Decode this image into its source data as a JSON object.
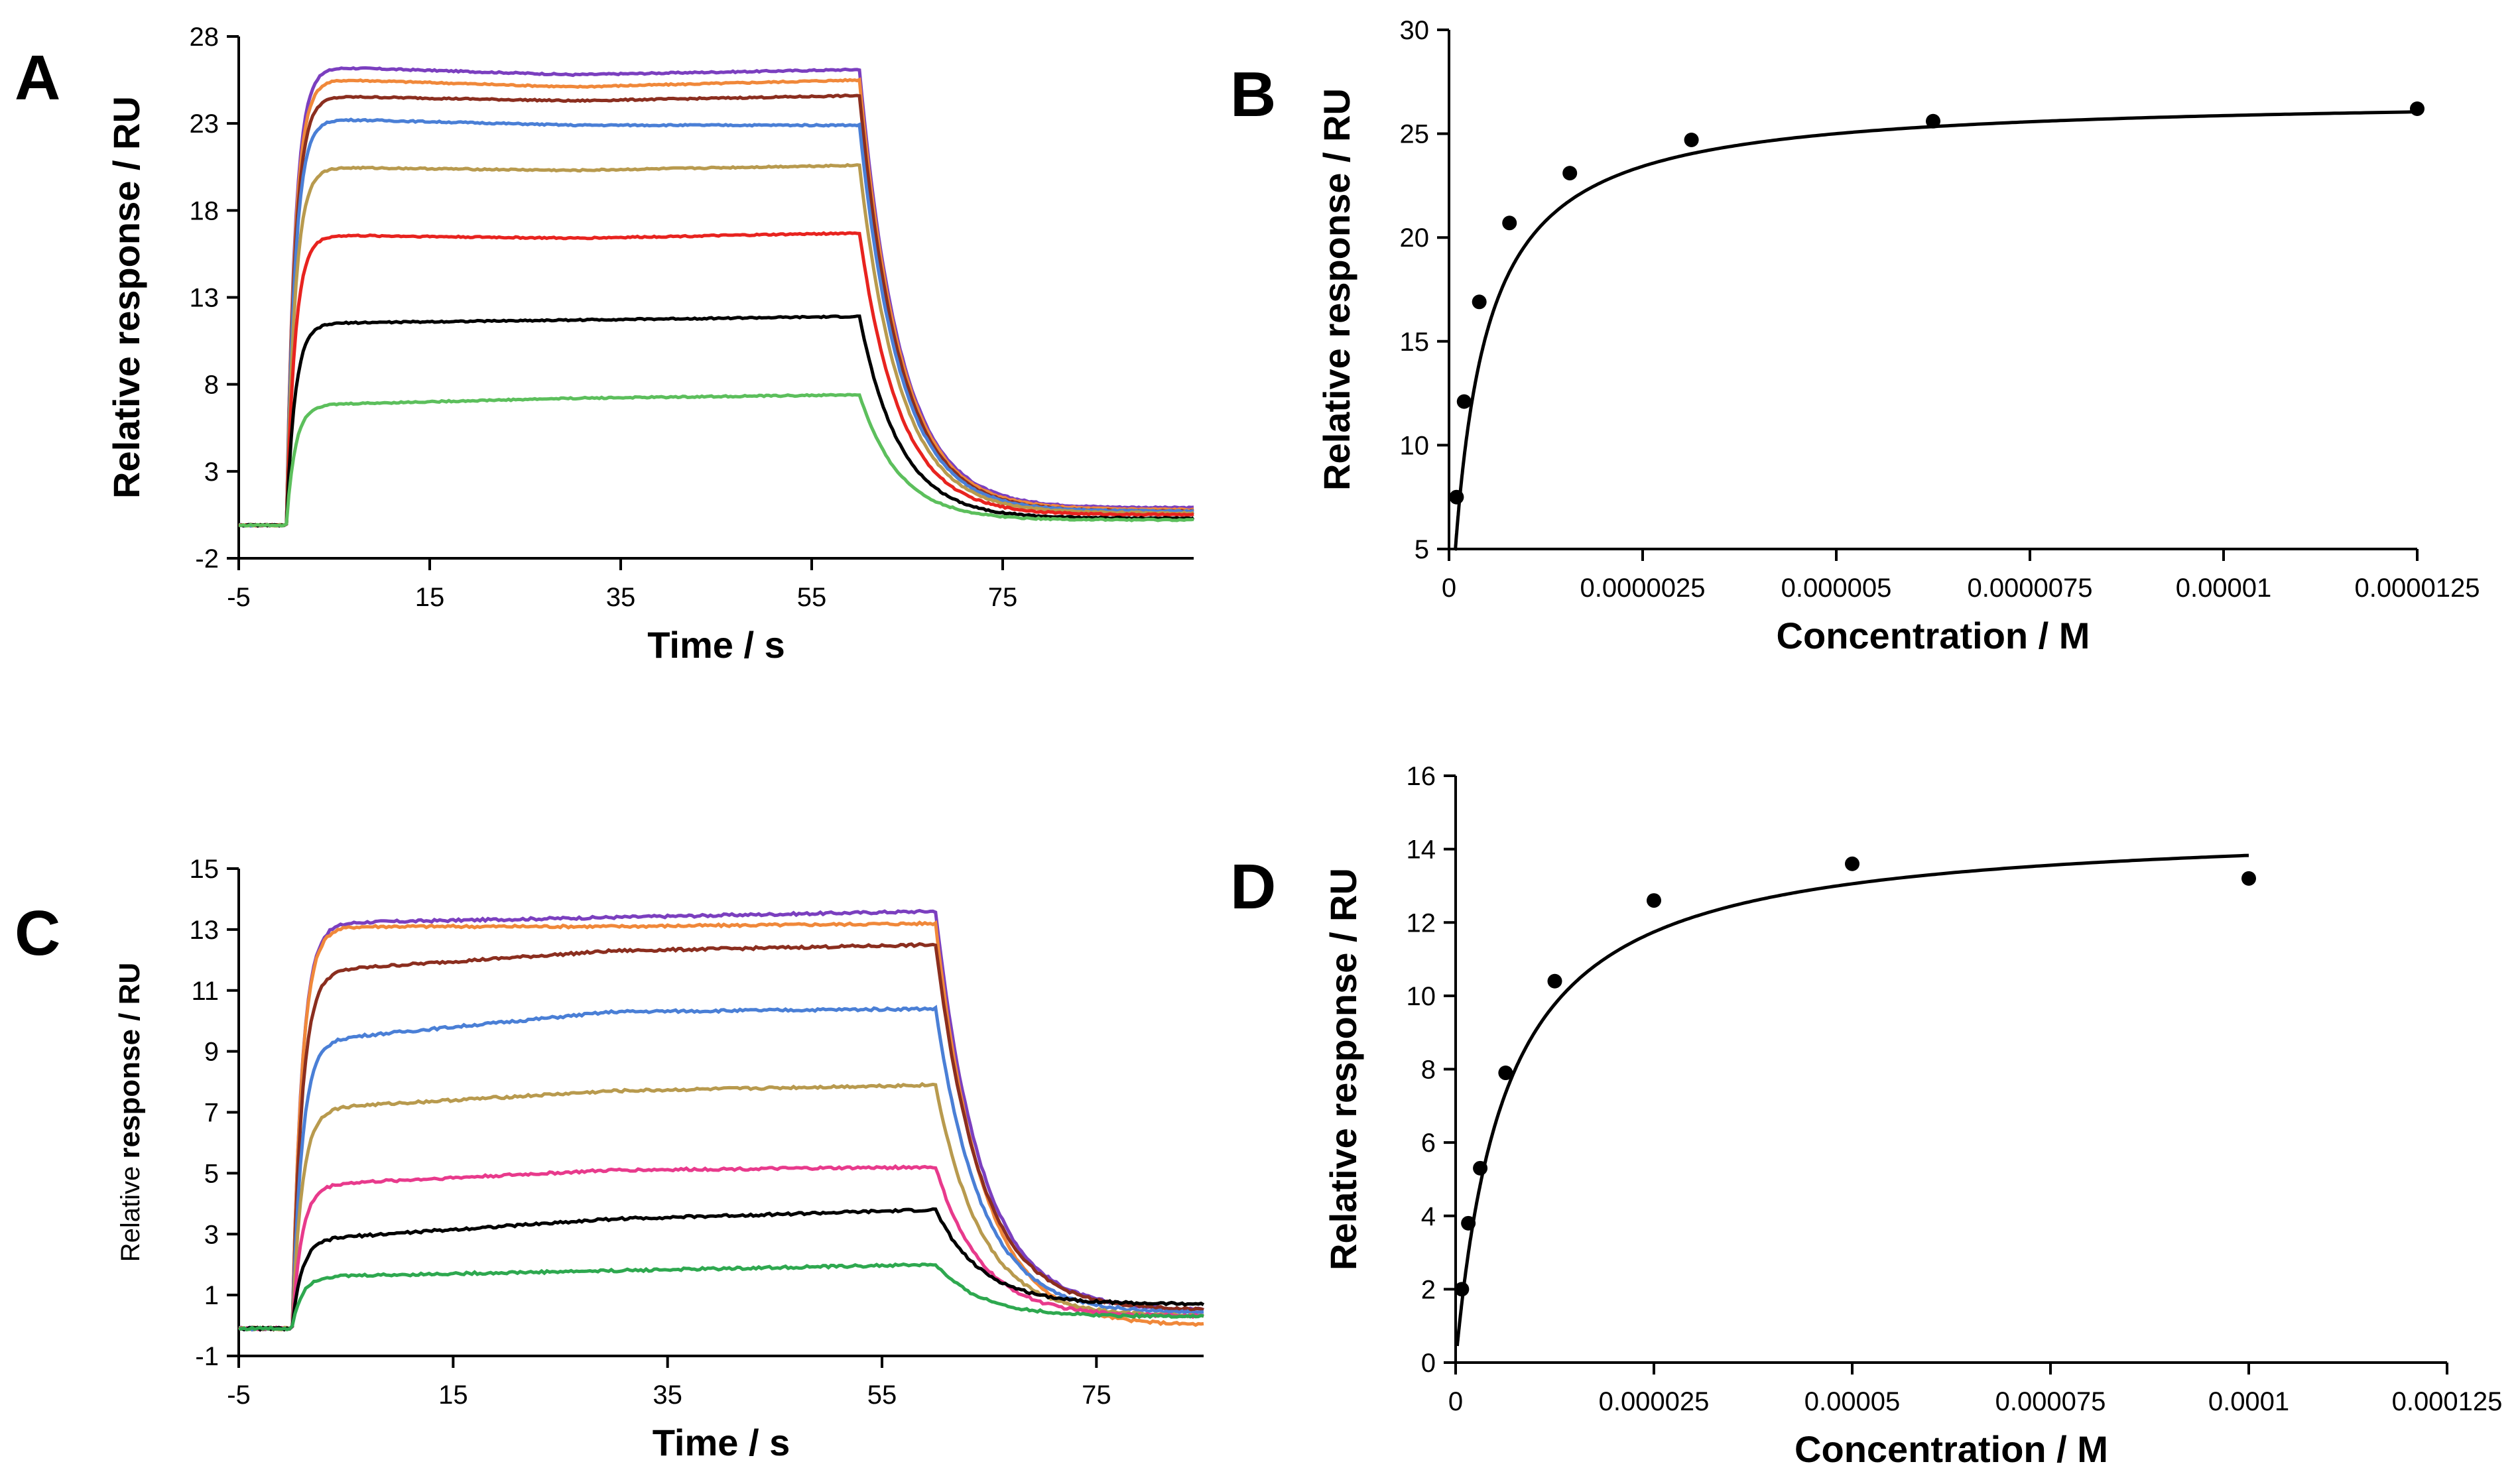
{
  "chart_data": [
    {
      "panel": "A",
      "type": "line",
      "xlabel": "Time / s",
      "ylabel": "Relative response / RU",
      "xlim": [
        -5,
        95
      ],
      "ylim": [
        -2,
        28
      ],
      "xticks": [
        -5,
        15,
        35,
        55,
        75
      ],
      "yticks": [
        -2,
        3,
        8,
        13,
        18,
        23,
        28
      ],
      "xtick_labels": [
        "-5",
        "15",
        "35",
        "55",
        "75"
      ],
      "ytick_labels": [
        "-2",
        "3",
        "8",
        "13",
        "18",
        "23",
        "28"
      ],
      "injection_start": 0,
      "injection_end": 60,
      "series": [
        {
          "color": "#7b3fbf",
          "plateau_start": 26.3,
          "plateau_mid": 25.8,
          "plateau_end": 26.1,
          "final": 0.9
        },
        {
          "color": "#f0883a",
          "plateau_start": 25.6,
          "plateau_mid": 25.1,
          "plateau_end": 25.5,
          "final": 0.8
        },
        {
          "color": "#8b2e1f",
          "plateau_start": 24.6,
          "plateau_mid": 24.3,
          "plateau_end": 24.6,
          "final": 0.7
        },
        {
          "color": "#4a7fd6",
          "plateau_start": 23.3,
          "plateau_mid": 22.9,
          "plateau_end": 22.9,
          "final": 0.7
        },
        {
          "color": "#b89a4e",
          "plateau_start": 20.5,
          "plateau_mid": 20.3,
          "plateau_end": 20.6,
          "final": 0.6
        },
        {
          "color": "#e8231f",
          "plateau_start": 16.6,
          "plateau_mid": 16.4,
          "plateau_end": 16.7,
          "final": 0.5
        },
        {
          "color": "#000000",
          "plateau_start": 11.5,
          "plateau_mid": 11.7,
          "plateau_end": 11.9,
          "final": 0.3
        },
        {
          "color": "#5cbf5c",
          "plateau_start": 6.8,
          "plateau_mid": 7.2,
          "plateau_end": 7.4,
          "final": 0.2
        }
      ]
    },
    {
      "panel": "B",
      "type": "scatter",
      "xlabel": "Concentration / M",
      "ylabel": "Relative response / RU",
      "xlim": [
        0,
        1.25e-05
      ],
      "ylim": [
        5,
        30
      ],
      "xticks": [
        0,
        2.5e-06,
        5e-06,
        7.5e-06,
        1e-05,
        1.25e-05
      ],
      "yticks": [
        5,
        10,
        15,
        20,
        25,
        30
      ],
      "xtick_labels": [
        "0",
        "0.0000025",
        "0.000005",
        "0.0000075",
        "0.00001",
        "0.0000125"
      ],
      "ytick_labels": [
        "5",
        "10",
        "15",
        "20",
        "25",
        "30"
      ],
      "points": [
        {
          "x": 9.77e-08,
          "y": 7.5
        },
        {
          "x": 1.95e-07,
          "y": 12.1
        },
        {
          "x": 3.91e-07,
          "y": 16.9
        },
        {
          "x": 7.81e-07,
          "y": 20.7
        },
        {
          "x": 1.56e-06,
          "y": 23.1
        },
        {
          "x": 3.13e-06,
          "y": 24.7
        },
        {
          "x": 6.25e-06,
          "y": 25.6
        },
        {
          "x": 1.25e-05,
          "y": 26.2
        }
      ],
      "fit": {
        "model": "langmuir",
        "rmax": 26.8,
        "kd": 3.6e-07,
        "x_range": [
          8e-08,
          1.25e-05
        ]
      }
    },
    {
      "panel": "C",
      "type": "line",
      "xlabel": "Time / s",
      "ylabel": "Relative response / RU",
      "xlim": [
        -5,
        85
      ],
      "ylim": [
        -1,
        15
      ],
      "xticks": [
        -5,
        15,
        35,
        55,
        75
      ],
      "yticks": [
        -1,
        1,
        3,
        5,
        7,
        9,
        11,
        13,
        15
      ],
      "xtick_labels": [
        "-5",
        "15",
        "35",
        "55",
        "75"
      ],
      "ytick_labels": [
        "-1",
        "1",
        "3",
        "5",
        "7",
        "9",
        "11",
        "13",
        "15"
      ],
      "injection_start": 0,
      "injection_end": 60,
      "series": [
        {
          "color": "#7b3fbf",
          "plateau_start": 13.2,
          "plateau_mid": 13.4,
          "plateau_end": 13.6,
          "final": 0.5
        },
        {
          "color": "#f0883a",
          "plateau_start": 13.1,
          "plateau_mid": 13.1,
          "plateau_end": 13.2,
          "final": 0.0
        },
        {
          "color": "#8b2e1f",
          "plateau_start": 11.6,
          "plateau_mid": 12.3,
          "plateau_end": 12.5,
          "final": 0.5
        },
        {
          "color": "#4a7fd6",
          "plateau_start": 9.3,
          "plateau_mid": 10.3,
          "plateau_end": 10.4,
          "final": 0.4
        },
        {
          "color": "#b89a4e",
          "plateau_start": 7.1,
          "plateau_mid": 7.7,
          "plateau_end": 7.9,
          "final": 0.3
        },
        {
          "color": "#e83a8c",
          "plateau_start": 4.6,
          "plateau_mid": 5.1,
          "plateau_end": 5.2,
          "final": 0.3
        },
        {
          "color": "#000000",
          "plateau_start": 2.8,
          "plateau_mid": 3.5,
          "plateau_end": 3.8,
          "final": 0.7
        },
        {
          "color": "#2ea84f",
          "plateau_start": 1.6,
          "plateau_mid": 1.8,
          "plateau_end": 2.0,
          "final": 0.3
        }
      ]
    },
    {
      "panel": "D",
      "type": "scatter",
      "xlabel": "Concentration / M",
      "ylabel": "Relative response / RU",
      "xlim": [
        0,
        0.000125
      ],
      "ylim": [
        0,
        16
      ],
      "xticks": [
        0,
        2.5e-05,
        5e-05,
        7.5e-05,
        0.0001,
        0.000125
      ],
      "yticks": [
        0,
        2,
        4,
        6,
        8,
        10,
        12,
        14,
        16
      ],
      "xtick_labels": [
        "0",
        "0.000025",
        "0.00005",
        "0.000075",
        "0.0001",
        "0.000125"
      ],
      "ytick_labels": [
        "0",
        "2",
        "4",
        "6",
        "8",
        "10",
        "12",
        "14",
        "16"
      ],
      "points": [
        {
          "x": 7.8e-07,
          "y": 2.0
        },
        {
          "x": 1.6e-06,
          "y": 3.8
        },
        {
          "x": 3.1e-06,
          "y": 5.3
        },
        {
          "x": 6.3e-06,
          "y": 7.9
        },
        {
          "x": 1.25e-05,
          "y": 10.4
        },
        {
          "x": 2.5e-05,
          "y": 12.6
        },
        {
          "x": 5e-05,
          "y": 13.6
        },
        {
          "x": 0.0001,
          "y": 13.2
        }
      ],
      "fit": {
        "model": "langmuir",
        "rmax": 14.7,
        "kd": 6.3e-06,
        "x_range": [
          2e-07,
          0.0001
        ]
      }
    }
  ],
  "panels": {
    "A": {
      "letter": "A"
    },
    "B": {
      "letter": "B"
    },
    "C": {
      "letter": "C"
    },
    "D": {
      "letter": "D"
    }
  }
}
